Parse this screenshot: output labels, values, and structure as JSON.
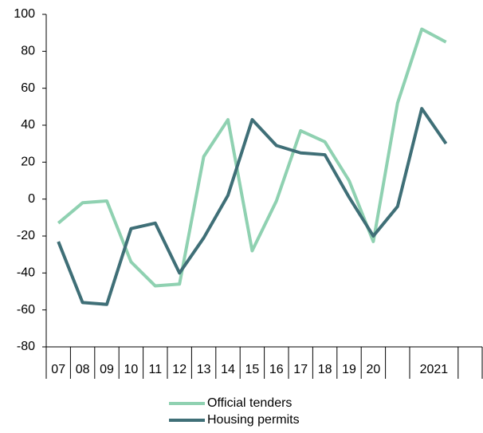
{
  "chart_data": {
    "type": "line",
    "categories": [
      "07",
      "08",
      "09",
      "10",
      "11",
      "12",
      "13",
      "14",
      "15",
      "16",
      "17",
      "18",
      "19",
      "20",
      null,
      "2021",
      null
    ],
    "series": [
      {
        "name": "Official tenders",
        "color": "#8fd1b1",
        "values": [
          -13,
          -2,
          -1,
          -34,
          -47,
          -46,
          23,
          43,
          -28,
          -1,
          37,
          31,
          10,
          -23,
          52,
          92,
          85
        ]
      },
      {
        "name": "Housing permits",
        "color": "#3f6f77",
        "values": [
          -23,
          -56,
          -57,
          -16,
          -13,
          -40,
          -21,
          2,
          43,
          29,
          25,
          24,
          1,
          -20,
          -4,
          49,
          30
        ]
      }
    ],
    "ylim": [
      -80,
      100
    ],
    "yticks": [
      -80,
      -60,
      -40,
      -20,
      0,
      20,
      40,
      60,
      80,
      100
    ]
  }
}
